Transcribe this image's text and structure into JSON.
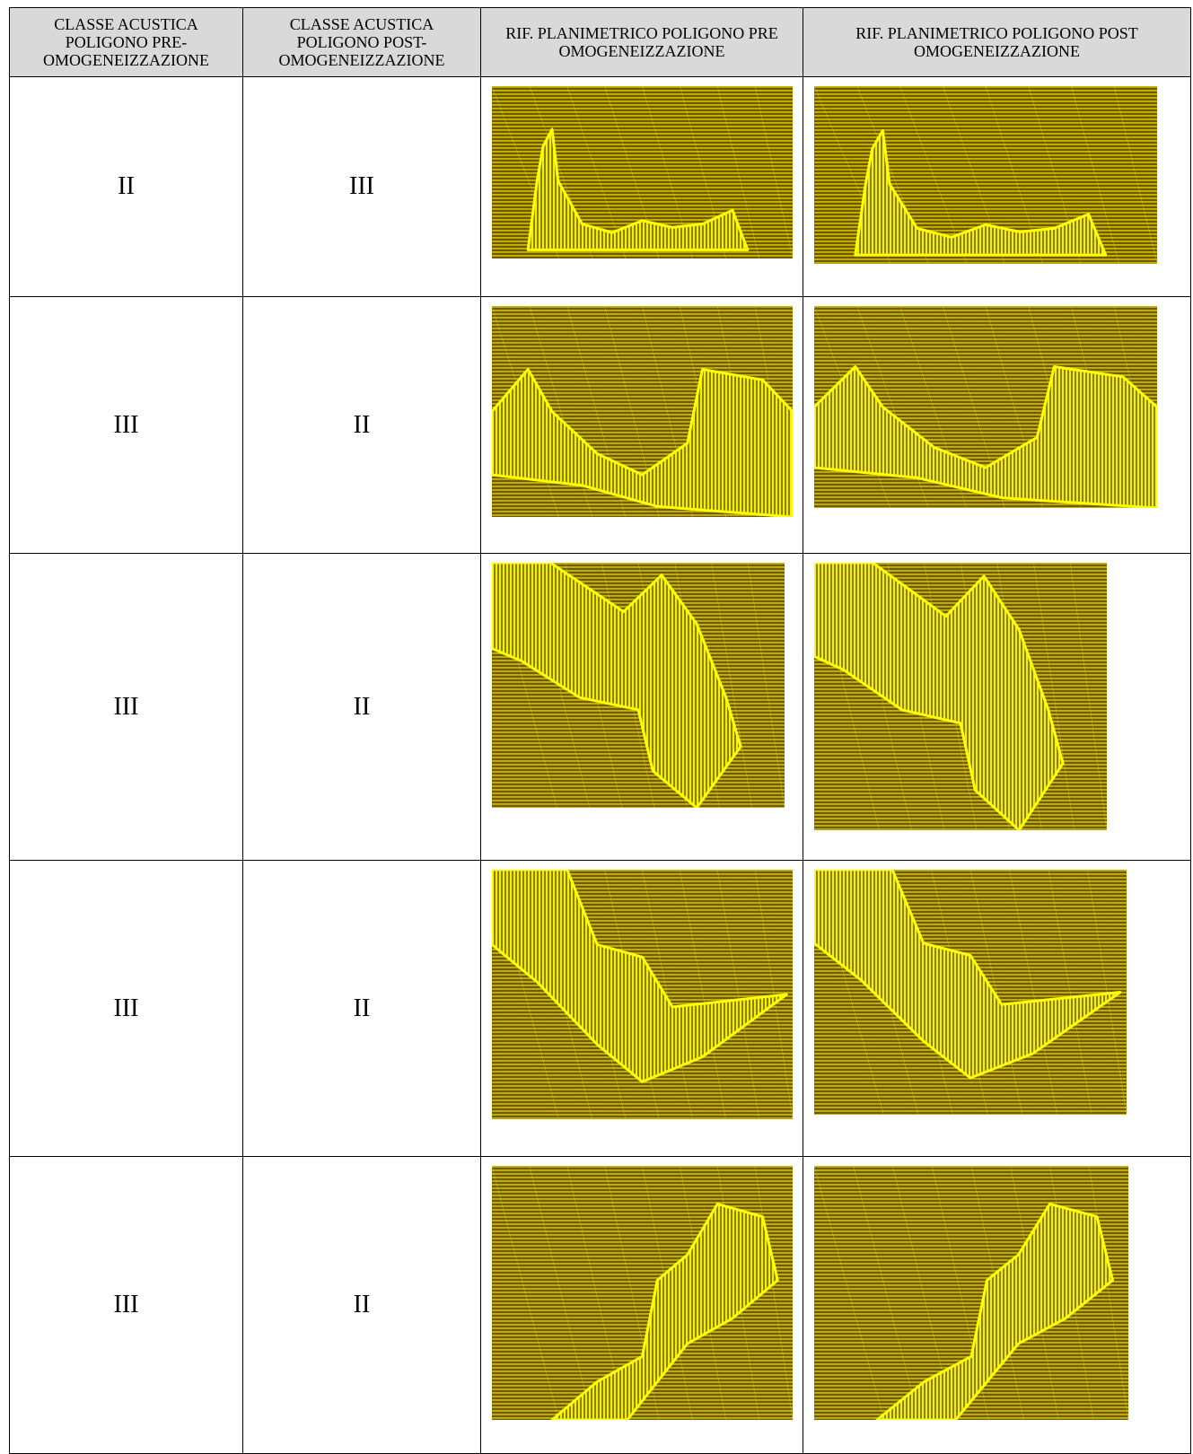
{
  "table": {
    "header": [
      "CLASSE ACUSTICA POLIGONO PRE-OMOGENEIZZAZIONE",
      "CLASSE ACUSTICA POLIGONO POST-OMOGENEIZZAZIONE",
      "RIF. PLANIMETRICO POLIGONO PRE OMOGENEIZZAZIONE",
      "RIF. PLANIMETRICO POLIGONO POST OMOGENEIZZAZIONE"
    ],
    "rows": [
      [
        "II",
        "III"
      ],
      [
        "III",
        "II"
      ],
      [
        "III",
        "II"
      ],
      [
        "III",
        "II"
      ],
      [
        "III",
        "II"
      ]
    ]
  }
}
